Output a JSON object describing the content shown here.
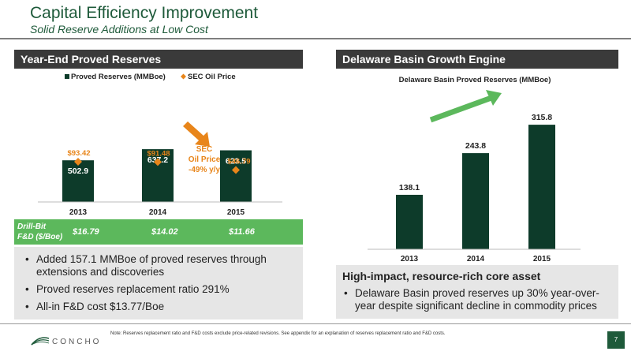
{
  "header": {
    "title": "Capital Efficiency Improvement",
    "subtitle": "Solid Reserve Additions at Low Cost"
  },
  "left_panel": {
    "heading": "Year-End Proved Reserves",
    "annotation": [
      "SEC",
      "Oil Price",
      "-49% y/y"
    ],
    "fd": {
      "label_line1": "Drill-Bit",
      "label_line2": "F&D ($/Boe)",
      "values": [
        "$16.79",
        "$14.02",
        "$11.66"
      ]
    },
    "bullets": [
      "Added 157.1 MMBoe of proved reserves through extensions and discoveries",
      "Proved reserves replacement ratio 291%",
      "All-in F&D cost $13.77/Boe"
    ]
  },
  "right_panel": {
    "heading": "Delaware Basin Growth Engine",
    "box_title": "High-impact, resource-rich core asset",
    "bullets": [
      "Delaware Basin proved reserves up 30% year-over-year despite significant decline in commodity prices"
    ]
  },
  "footer": {
    "logo_text": "CONCHO",
    "note": "Note: Reserves replacement ratio and F&D costs exclude price-related revisions.  See appendix for an explanation of reserves replacement ratio and F&D costs.",
    "page": "7"
  },
  "colors": {
    "brand_green": "#1e5a3a",
    "bar": "#0d3b2a",
    "oil_price": "#e8851a",
    "fd_row": "#5cb85c",
    "arrow_green": "#5cb85c"
  },
  "chart_data": [
    {
      "type": "bar",
      "title": "",
      "categories": [
        "2013",
        "2014",
        "2015"
      ],
      "series": [
        {
          "name": "Proved Reserves (MMBoe)",
          "type": "bar",
          "values": [
            502.9,
            637.2,
            623.5
          ],
          "labels": [
            "502.9",
            "637.2",
            "623.5"
          ]
        },
        {
          "name": "SEC Oil Price",
          "type": "marker",
          "values": [
            93.42,
            91.48,
            46.79
          ],
          "labels": [
            "$93.42",
            "$91.48",
            "$46.79"
          ]
        }
      ],
      "legend": "top-center",
      "grid": false
    },
    {
      "type": "bar",
      "title": "Delaware Basin Proved Reserves (MMBoe)",
      "categories": [
        "2013",
        "2014",
        "2015"
      ],
      "values": [
        138.1,
        243.8,
        315.8
      ],
      "labels": [
        "138.1",
        "243.8",
        "315.8"
      ],
      "grid": false
    }
  ]
}
